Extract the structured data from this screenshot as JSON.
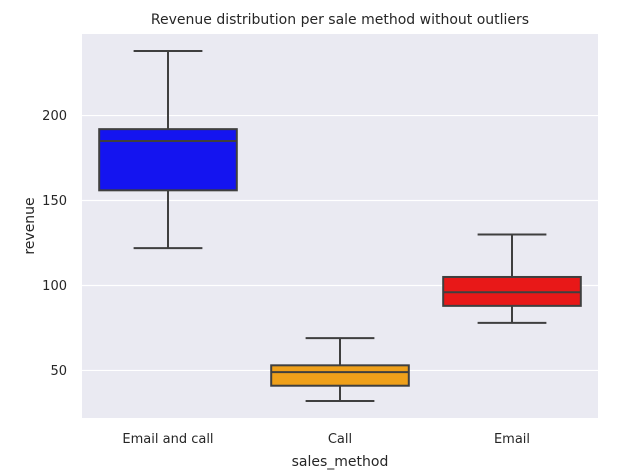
{
  "chart_data": {
    "type": "box",
    "title": "Revenue distribution per sale method without outliers",
    "xlabel": "sales_method",
    "ylabel": "revenue",
    "ylim": [
      22,
      248
    ],
    "yticks": [
      50,
      100,
      150,
      200
    ],
    "grid": true,
    "categories": [
      "Email and call",
      "Call",
      "Email"
    ],
    "boxes": [
      {
        "category": "Email and call",
        "color": "#1414F0",
        "whisker_low": 122,
        "q1": 156,
        "median": 185,
        "q3": 192,
        "whisker_high": 238
      },
      {
        "category": "Call",
        "color": "#EFA01A",
        "whisker_low": 32,
        "q1": 41,
        "median": 49,
        "q3": 53,
        "whisker_high": 69
      },
      {
        "category": "Email",
        "color": "#E81818",
        "whisker_low": 78,
        "q1": 88,
        "median": 96,
        "q3": 105,
        "whisker_high": 130
      }
    ],
    "colors": {
      "plot_bg": "#EAEAF2",
      "grid": "#FFFFFF",
      "line": "#3F3F3F"
    }
  }
}
